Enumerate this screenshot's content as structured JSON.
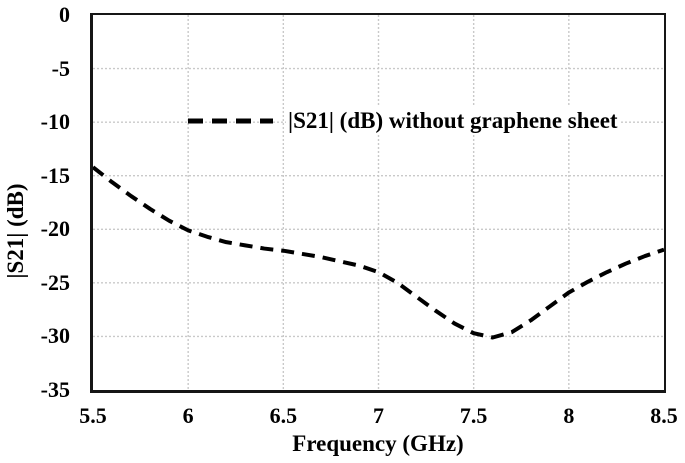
{
  "colors": {
    "background": "#ffffff",
    "axis_frame": "#161616",
    "gridline": "#c9c9c9",
    "series_line": "#000000",
    "text": "#000000"
  },
  "chart_data": {
    "type": "line",
    "title": "",
    "xlabel": "Frequency (GHz)",
    "ylabel": "|S21| (dB)",
    "xlim": [
      5.5,
      8.5
    ],
    "ylim": [
      -35,
      0
    ],
    "grid": true,
    "legend_position": "inside-top-center",
    "x_ticks": [
      {
        "value": 5.5,
        "label": "5.5"
      },
      {
        "value": 6,
        "label": "6"
      },
      {
        "value": 6.5,
        "label": "6.5"
      },
      {
        "value": 7,
        "label": "7"
      },
      {
        "value": 7.5,
        "label": "7.5"
      },
      {
        "value": 8,
        "label": "8"
      },
      {
        "value": 8.5,
        "label": "8.5"
      }
    ],
    "y_ticks": [
      {
        "value": 0,
        "label": "0"
      },
      {
        "value": -5,
        "label": "-5"
      },
      {
        "value": -10,
        "label": "-10"
      },
      {
        "value": -15,
        "label": "-15"
      },
      {
        "value": -20,
        "label": "-20"
      },
      {
        "value": -25,
        "label": "-25"
      },
      {
        "value": -30,
        "label": "-30"
      },
      {
        "value": -35,
        "label": "-35"
      }
    ],
    "series": [
      {
        "name": "|S21| (dB) without graphene sheet",
        "line_style": "dashed",
        "color": "#000000",
        "x": [
          5.5,
          5.6,
          5.7,
          5.8,
          5.9,
          6.0,
          6.1,
          6.2,
          6.3,
          6.4,
          6.5,
          6.6,
          6.7,
          6.8,
          6.9,
          7.0,
          7.1,
          7.2,
          7.3,
          7.4,
          7.5,
          7.6,
          7.7,
          7.8,
          7.9,
          8.0,
          8.1,
          8.2,
          8.3,
          8.4,
          8.5
        ],
        "y": [
          -14.2,
          -15.6,
          -16.9,
          -18.1,
          -19.2,
          -20.1,
          -20.7,
          -21.2,
          -21.5,
          -21.8,
          -22.0,
          -22.3,
          -22.6,
          -23.0,
          -23.4,
          -24.0,
          -25.0,
          -26.3,
          -27.6,
          -28.8,
          -29.7,
          -30.1,
          -29.6,
          -28.5,
          -27.2,
          -25.9,
          -24.9,
          -24.0,
          -23.2,
          -22.5,
          -21.9
        ]
      }
    ]
  }
}
